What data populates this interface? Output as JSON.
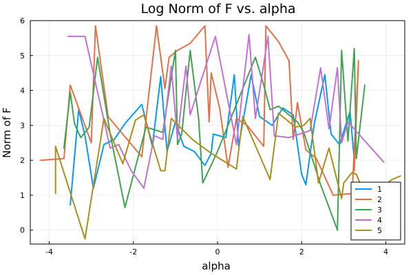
{
  "chart_data": {
    "type": "line",
    "title": "Log Norm of F vs. alpha",
    "xlabel": "alpha",
    "ylabel": "Norm of F",
    "xlim": [
      -4.45,
      4.45
    ],
    "ylim": [
      -0.4,
      6.0
    ],
    "xticks": [
      -4,
      -2,
      0,
      2,
      4
    ],
    "yticks": [
      0,
      1,
      2,
      3,
      4,
      5,
      6
    ],
    "grid": true,
    "legend_position": "bottom-right",
    "series": [
      {
        "name": "1",
        "color": "#009AFA",
        "points": [
          [
            -3.5,
            0.72
          ],
          [
            -3.3,
            3.45
          ],
          [
            -3.15,
            2.7
          ],
          [
            -2.95,
            1.2
          ],
          [
            -2.7,
            2.45
          ],
          [
            -2.45,
            2.6
          ],
          [
            -2.2,
            3.05
          ],
          [
            -1.8,
            3.6
          ],
          [
            -1.55,
            2.4
          ],
          [
            -1.35,
            4.4
          ],
          [
            -1.2,
            2.25
          ],
          [
            -1.0,
            3.1
          ],
          [
            -0.8,
            2.4
          ],
          [
            -0.55,
            2.25
          ],
          [
            -0.3,
            1.85
          ],
          [
            -0.15,
            2.2
          ],
          [
            -0.1,
            2.75
          ],
          [
            0.2,
            2.65
          ],
          [
            0.4,
            4.45
          ],
          [
            0.5,
            2.4
          ],
          [
            0.8,
            4.45
          ],
          [
            1.0,
            3.25
          ],
          [
            1.3,
            3.0
          ],
          [
            1.55,
            3.5
          ],
          [
            1.8,
            3.3
          ],
          [
            2.0,
            1.6
          ],
          [
            2.1,
            1.3
          ],
          [
            2.3,
            3.05
          ],
          [
            2.55,
            4.45
          ],
          [
            2.7,
            2.75
          ],
          [
            2.9,
            2.45
          ],
          [
            3.15,
            3.4
          ],
          [
            3.25,
            2.0
          ]
        ]
      },
      {
        "name": "2",
        "color": "#E36F47",
        "points": [
          [
            -4.2,
            2.0
          ],
          [
            -3.65,
            2.05
          ],
          [
            -3.5,
            4.15
          ],
          [
            -3.0,
            2.5
          ],
          [
            -2.9,
            5.85
          ],
          [
            -2.6,
            3.25
          ],
          [
            -1.8,
            2.1
          ],
          [
            -1.45,
            5.85
          ],
          [
            -1.25,
            4.05
          ],
          [
            -1.15,
            4.95
          ],
          [
            -0.95,
            5.15
          ],
          [
            -0.65,
            5.35
          ],
          [
            -0.3,
            5.85
          ],
          [
            -0.2,
            3.1
          ],
          [
            -0.15,
            4.5
          ],
          [
            0.05,
            3.5
          ],
          [
            0.25,
            1.8
          ],
          [
            0.45,
            3.2
          ],
          [
            0.7,
            3.0
          ],
          [
            1.1,
            2.4
          ],
          [
            1.15,
            5.85
          ],
          [
            1.45,
            5.4
          ],
          [
            1.7,
            4.85
          ],
          [
            1.8,
            2.6
          ],
          [
            1.9,
            3.65
          ],
          [
            2.1,
            2.3
          ],
          [
            2.35,
            2.05
          ],
          [
            2.75,
            1.0
          ],
          [
            3.2,
            1.05
          ],
          [
            3.35,
            4.85
          ],
          [
            3.25,
            1.7
          ]
        ]
      },
      {
        "name": "3",
        "color": "#3EA44E",
        "points": [
          [
            -3.65,
            2.35
          ],
          [
            -3.5,
            3.95
          ],
          [
            -3.4,
            3.05
          ],
          [
            -3.25,
            2.65
          ],
          [
            -3.05,
            2.95
          ],
          [
            -2.85,
            4.95
          ],
          [
            -2.55,
            2.75
          ],
          [
            -2.2,
            0.65
          ],
          [
            -1.7,
            2.95
          ],
          [
            -1.3,
            2.8
          ],
          [
            -1.0,
            5.15
          ],
          [
            -0.95,
            2.45
          ],
          [
            -0.85,
            2.75
          ],
          [
            -0.65,
            5.15
          ],
          [
            -0.45,
            3.2
          ],
          [
            -0.35,
            1.35
          ],
          [
            0.0,
            2.25
          ],
          [
            0.9,
            4.95
          ],
          [
            1.1,
            4.15
          ],
          [
            1.25,
            3.45
          ],
          [
            1.45,
            3.55
          ],
          [
            1.9,
            3.1
          ],
          [
            2.05,
            2.8
          ],
          [
            2.45,
            1.3
          ],
          [
            2.85,
            0.0
          ],
          [
            2.95,
            5.15
          ],
          [
            3.1,
            2.55
          ],
          [
            3.25,
            5.2
          ],
          [
            3.3,
            2.05
          ],
          [
            3.5,
            4.15
          ]
        ]
      },
      {
        "name": "4",
        "color": "#C271D2",
        "points": [
          [
            -3.55,
            5.55
          ],
          [
            -3.15,
            5.55
          ],
          [
            -2.55,
            2.35
          ],
          [
            -2.35,
            2.45
          ],
          [
            -2.05,
            1.7
          ],
          [
            -1.75,
            1.2
          ],
          [
            -1.5,
            2.7
          ],
          [
            -1.3,
            2.6
          ],
          [
            -1.1,
            4.7
          ],
          [
            -0.95,
            2.6
          ],
          [
            -0.85,
            3.7
          ],
          [
            -0.75,
            4.7
          ],
          [
            -0.65,
            3.3
          ],
          [
            -0.4,
            4.25
          ],
          [
            -0.05,
            5.55
          ],
          [
            0.45,
            2.45
          ],
          [
            0.75,
            5.6
          ],
          [
            0.9,
            3.2
          ],
          [
            1.2,
            5.55
          ],
          [
            1.35,
            2.7
          ],
          [
            1.7,
            2.65
          ],
          [
            2.2,
            2.85
          ],
          [
            2.45,
            4.65
          ],
          [
            2.65,
            2.9
          ],
          [
            2.85,
            4.65
          ],
          [
            2.95,
            2.5
          ],
          [
            3.1,
            3.1
          ],
          [
            3.95,
            1.95
          ]
        ]
      },
      {
        "name": "5",
        "color": "#AC8D18",
        "points": [
          [
            -3.85,
            1.05
          ],
          [
            -3.85,
            2.4
          ],
          [
            -3.15,
            -0.25
          ],
          [
            -2.7,
            3.2
          ],
          [
            -2.25,
            1.9
          ],
          [
            -1.95,
            3.15
          ],
          [
            -1.75,
            3.3
          ],
          [
            -1.35,
            1.7
          ],
          [
            -1.25,
            1.7
          ],
          [
            -1.1,
            3.2
          ],
          [
            -0.6,
            2.6
          ],
          [
            -0.15,
            2.2
          ],
          [
            0.45,
            1.75
          ],
          [
            0.6,
            3.25
          ],
          [
            1.25,
            1.45
          ],
          [
            1.45,
            3.35
          ],
          [
            1.85,
            2.95
          ],
          [
            2.05,
            3.0
          ],
          [
            2.2,
            3.2
          ],
          [
            2.4,
            1.35
          ],
          [
            2.65,
            2.35
          ],
          [
            2.95,
            0.9
          ],
          [
            3.0,
            1.35
          ],
          [
            3.2,
            1.65
          ],
          [
            3.3,
            1.6
          ],
          [
            3.5,
            1.0
          ],
          [
            3.7,
            1.05
          ],
          [
            4.15,
            1.45
          ],
          [
            4.35,
            1.55
          ]
        ]
      }
    ]
  }
}
